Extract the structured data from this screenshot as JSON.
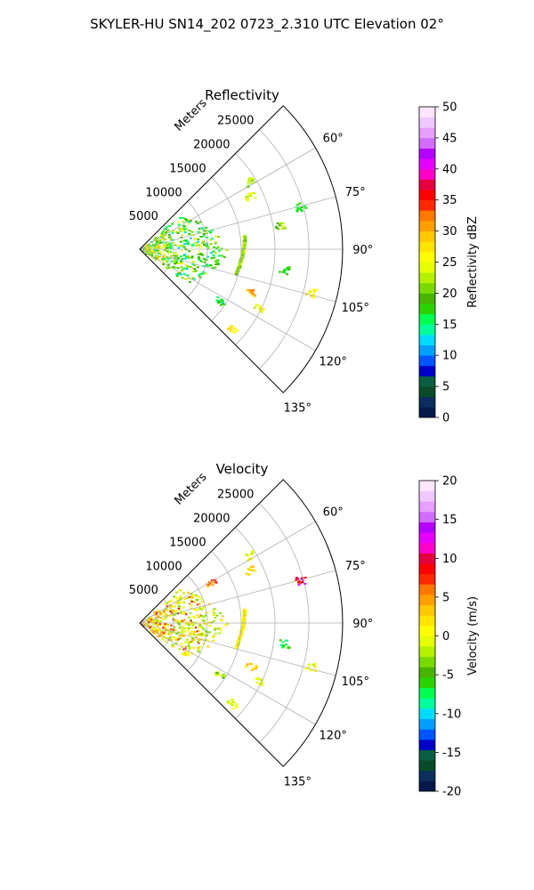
{
  "figure_title": "SKYLER-HU  SN14_202  0723_2.310 UTC Elevation 02°",
  "chart_data": [
    {
      "type": "heatmap",
      "projection": "polar-sector",
      "title": "Reflectivity",
      "range_label": "Meters",
      "range_ticks": [
        5000,
        10000,
        15000,
        20000,
        25000
      ],
      "range_lim": [
        0,
        30000
      ],
      "azimuth_ticks": [
        "60°",
        "75°",
        "90°",
        "105°",
        "120°",
        "135°"
      ],
      "azimuth_lim": [
        45,
        135
      ],
      "grid": true,
      "colorbar": {
        "label": "Reflectivity dBZ",
        "ticks": [
          0,
          5,
          10,
          15,
          20,
          25,
          30,
          35,
          40,
          45,
          50
        ],
        "range": [
          0,
          50
        ],
        "colors": [
          "#061a4a",
          "#0b2e5c",
          "#0a4a2a",
          "#0b5e44",
          "#0000c8",
          "#0055ff",
          "#00a0ff",
          "#00dcff",
          "#00ff9c",
          "#00ff50",
          "#28d200",
          "#46b400",
          "#7ada00",
          "#b4f000",
          "#e6ff00",
          "#ffff00",
          "#ffe600",
          "#ffc800",
          "#ffa000",
          "#ff7800",
          "#ff2800",
          "#ff0000",
          "#e60040",
          "#ff00c8",
          "#e600ff",
          "#b400ff",
          "#d26eff",
          "#e6a0ff",
          "#f0c8ff",
          "#ffe6ff"
        ]
      },
      "features": [
        {
          "kind": "fan",
          "a0": 48,
          "a1": 126,
          "r0": 0,
          "r1": 13000,
          "levels": [
            13,
            24
          ],
          "level_mid": 17
        },
        {
          "kind": "line",
          "a0": 82,
          "r0": 15500,
          "a1": 104,
          "r1": 14500,
          "level": 22
        },
        {
          "kind": "patch",
          "a": 75,
          "r": 24500,
          "level": 17
        },
        {
          "kind": "patch",
          "a": 111,
          "r": 17500,
          "level": 30
        },
        {
          "kind": "patch",
          "a": 116,
          "r": 19500,
          "level": 25
        },
        {
          "kind": "patch",
          "a": 98,
          "r": 21500,
          "level": 18
        },
        {
          "kind": "patch",
          "a": 64,
          "r": 18000,
          "level": 24
        },
        {
          "kind": "patch",
          "a": 58,
          "r": 19000,
          "level": 22
        },
        {
          "kind": "patch",
          "a": 131,
          "r": 18000,
          "level": 28
        },
        {
          "kind": "patch",
          "a": 104,
          "r": 26000,
          "level": 26
        },
        {
          "kind": "patch",
          "a": 123,
          "r": 14000,
          "level": 17
        },
        {
          "kind": "patch",
          "a": 80,
          "r": 21000,
          "level": 21
        }
      ]
    },
    {
      "type": "heatmap",
      "projection": "polar-sector",
      "title": "Velocity",
      "range_label": "Meters",
      "range_ticks": [
        5000,
        10000,
        15000,
        20000,
        25000
      ],
      "range_lim": [
        0,
        30000
      ],
      "azimuth_ticks": [
        "60°",
        "75°",
        "90°",
        "105°",
        "120°",
        "135°"
      ],
      "azimuth_lim": [
        45,
        135
      ],
      "grid": true,
      "colorbar": {
        "label": "Velocity (m/s)",
        "ticks": [
          -20,
          -15,
          -10,
          -5,
          0,
          5,
          10,
          15,
          20
        ],
        "range": [
          -20,
          20
        ],
        "colors": [
          "#061a4a",
          "#0b2e5c",
          "#0a4a2a",
          "#0b5e44",
          "#0000c8",
          "#0055ff",
          "#00a0ff",
          "#00dcff",
          "#00ff9c",
          "#00ff50",
          "#28d200",
          "#46b400",
          "#7ada00",
          "#b4f000",
          "#e6ff00",
          "#ffff00",
          "#ffe600",
          "#ffc800",
          "#ffa000",
          "#ff7800",
          "#ff2800",
          "#ff0000",
          "#e60040",
          "#ff00c8",
          "#e600ff",
          "#b400ff",
          "#d26eff",
          "#e6a0ff",
          "#f0c8ff",
          "#ffe6ff"
        ]
      },
      "features": [
        {
          "kind": "fan",
          "a0": 48,
          "a1": 126,
          "r0": 0,
          "r1": 13000,
          "levels": [
            -4,
            4
          ],
          "level_mid": 1
        },
        {
          "kind": "line",
          "a0": 82,
          "r0": 15500,
          "a1": 104,
          "r1": 14500,
          "level": 1
        },
        {
          "kind": "patch",
          "a": 75,
          "r": 24500,
          "level": 11
        },
        {
          "kind": "patch",
          "a": 111,
          "r": 17500,
          "level": 3
        },
        {
          "kind": "patch",
          "a": 116,
          "r": 19500,
          "level": -1
        },
        {
          "kind": "patch",
          "a": 98,
          "r": 21500,
          "level": -6
        },
        {
          "kind": "patch",
          "a": 64,
          "r": 18000,
          "level": 2
        },
        {
          "kind": "patch",
          "a": 58,
          "r": 19000,
          "level": 1
        },
        {
          "kind": "patch",
          "a": 131,
          "r": 18000,
          "level": 0
        },
        {
          "kind": "patch",
          "a": 104,
          "r": 26000,
          "level": 0
        },
        {
          "kind": "patch",
          "a": 123,
          "r": 14000,
          "level": -3
        },
        {
          "kind": "patch",
          "a": 60,
          "r": 12000,
          "level": 6
        }
      ]
    }
  ]
}
